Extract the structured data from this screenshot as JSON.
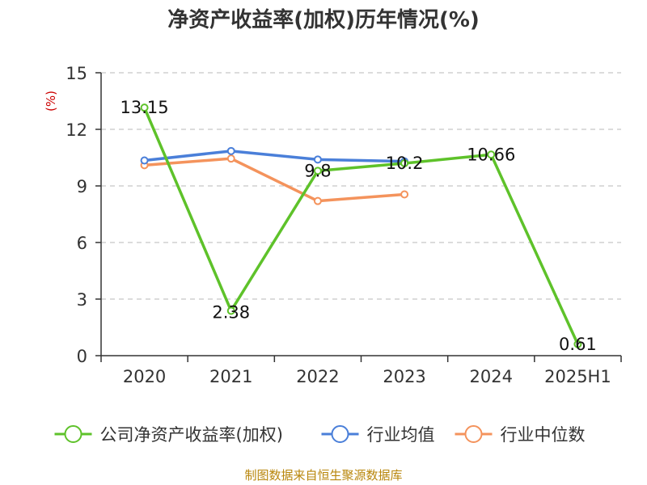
{
  "chart_data": {
    "type": "line",
    "title": "净资产收益率(加权)历年情况(%)",
    "ylabel": "(%)",
    "xlabel": "",
    "ylim": [
      0,
      15
    ],
    "yticks": [
      0,
      3,
      6,
      9,
      12,
      15
    ],
    "categories": [
      "2020",
      "2021",
      "2022",
      "2023",
      "2024",
      "2025H1"
    ],
    "grid": true,
    "legend_position": "bottom",
    "series": [
      {
        "name": "公司净资产收益率(加权)",
        "color": "#5ec22a",
        "values": [
          13.15,
          2.38,
          9.8,
          10.2,
          10.66,
          0.61
        ],
        "labels": [
          "13.15",
          "2.38",
          "9.8",
          "10.2",
          "10.66",
          "0.61"
        ]
      },
      {
        "name": "行业均值",
        "color": "#4a7fd9",
        "values": [
          10.35,
          10.85,
          10.4,
          10.3,
          null,
          null
        ]
      },
      {
        "name": "行业中位数",
        "color": "#f4935c",
        "values": [
          10.1,
          10.45,
          8.2,
          8.55,
          null,
          null
        ]
      }
    ],
    "source": "制图数据来自恒生聚源数据库"
  }
}
